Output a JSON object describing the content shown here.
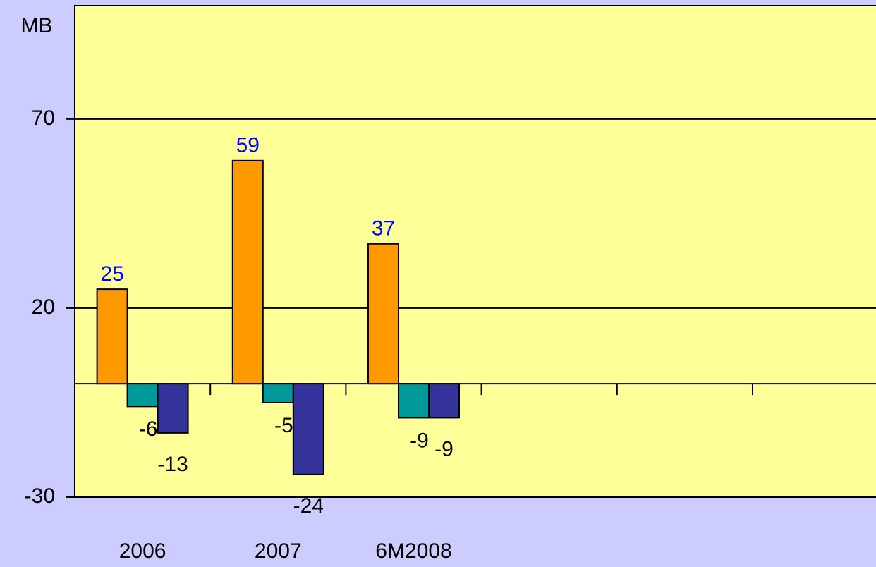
{
  "chart_data": {
    "type": "bar",
    "y_label": "MB",
    "categories": [
      "2006",
      "2007",
      "6M2008",
      null,
      null,
      null
    ],
    "series": [
      {
        "color": "#ff9900",
        "label_color": "#0000ff",
        "values": [
          25,
          59,
          37,
          null,
          null,
          null
        ]
      },
      {
        "color": "#009999",
        "label_color": "#000000",
        "values": [
          -6,
          -5,
          -9,
          null,
          null,
          null
        ]
      },
      {
        "color": "#333399",
        "label_color": "#000000",
        "values": [
          -13,
          -24,
          -9,
          null,
          null,
          null
        ]
      }
    ],
    "ylim": [
      -30,
      100
    ],
    "yticks": [
      -30,
      20,
      70
    ],
    "grid": true,
    "background": "#ccccff",
    "plot_background": "#ffff99"
  }
}
